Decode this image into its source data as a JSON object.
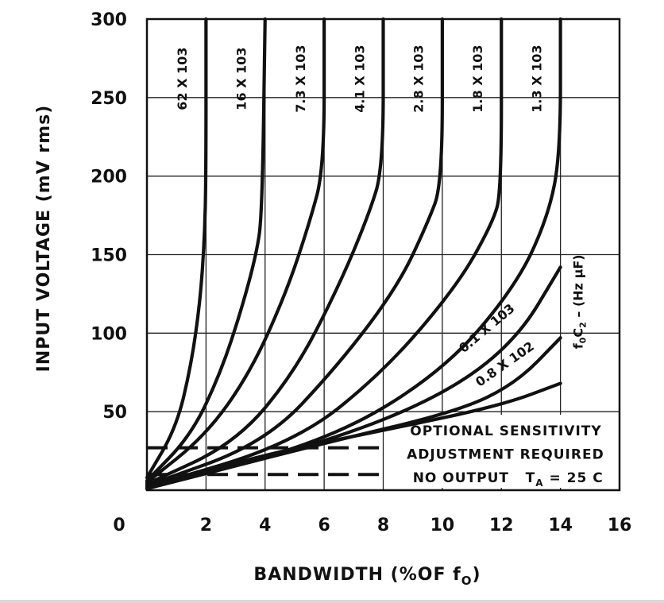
{
  "chart_data": {
    "type": "line",
    "title": "",
    "xlabel": "BANDWIDTH (%OF fO)",
    "xlabel_parts": {
      "main": "BANDWIDTH (%OF f",
      "sub": "O",
      "close": ")"
    },
    "ylabel": "INPUT VOLTAGE (mV rms)",
    "xlim": [
      0,
      16
    ],
    "ylim": [
      0,
      300
    ],
    "x_ticks": [
      "0",
      "2",
      "4",
      "6",
      "8",
      "10",
      "12",
      "14",
      "16"
    ],
    "y_ticks": [
      "50",
      "100",
      "150",
      "200",
      "250",
      "300"
    ],
    "grid": true,
    "family_label": "f0C2 – (Hz µF)",
    "family_label_parts": {
      "f": "f",
      "sub0": "0",
      "C": "C",
      "sub2": "2",
      "rest": " – (Hz µF)"
    },
    "series": [
      {
        "name": "62 X 103",
        "points": [
          [
            0,
            8
          ],
          [
            1.0,
            40
          ],
          [
            1.5,
            80
          ],
          [
            1.8,
            120
          ],
          [
            1.95,
            160
          ],
          [
            2,
            200
          ],
          [
            2,
            300
          ]
        ]
      },
      {
        "name": "16 X 103",
        "points": [
          [
            0,
            6
          ],
          [
            1.5,
            35
          ],
          [
            2.5,
            75
          ],
          [
            3.2,
            115
          ],
          [
            3.7,
            150
          ],
          [
            3.9,
            175
          ],
          [
            4,
            300
          ]
        ]
      },
      {
        "name": "7.3 X 103",
        "points": [
          [
            0,
            5
          ],
          [
            2.0,
            35
          ],
          [
            3.5,
            75
          ],
          [
            4.7,
            125
          ],
          [
            5.5,
            170
          ],
          [
            6,
            205
          ],
          [
            6,
            300
          ]
        ]
      },
      {
        "name": "4.1 X 103",
        "points": [
          [
            0,
            4
          ],
          [
            3.0,
            30
          ],
          [
            5.0,
            75
          ],
          [
            6.5,
            130
          ],
          [
            7.5,
            175
          ],
          [
            8,
            205
          ],
          [
            8,
            300
          ]
        ]
      },
      {
        "name": "2.8 X 103",
        "points": [
          [
            0,
            3
          ],
          [
            4.0,
            30
          ],
          [
            6.5,
            80
          ],
          [
            8.5,
            130
          ],
          [
            9.5,
            170
          ],
          [
            10,
            195
          ],
          [
            10,
            300
          ]
        ]
      },
      {
        "name": "1.8 X 103",
        "points": [
          [
            0,
            2
          ],
          [
            5.0,
            30
          ],
          [
            8.0,
            75
          ],
          [
            10.5,
            130
          ],
          [
            11.7,
            170
          ],
          [
            12,
            190
          ],
          [
            12,
            300
          ]
        ]
      },
      {
        "name": "1.3 X 103",
        "points": [
          [
            0,
            2
          ],
          [
            6.0,
            30
          ],
          [
            10.0,
            75
          ],
          [
            12.5,
            130
          ],
          [
            13.6,
            175
          ],
          [
            14,
            215
          ],
          [
            14,
            300
          ]
        ]
      },
      {
        "name": "0.1 X 103",
        "points": [
          [
            0,
            1
          ],
          [
            6.0,
            30
          ],
          [
            10.0,
            60
          ],
          [
            12.5,
            95
          ],
          [
            14,
            142
          ]
        ]
      },
      {
        "name": "0.8 X 102",
        "points": [
          [
            0,
            1
          ],
          [
            6.0,
            30
          ],
          [
            10.5,
            50
          ],
          [
            12.5,
            68
          ],
          [
            14,
            97
          ]
        ]
      },
      {
        "name": "",
        "points": [
          [
            0,
            1
          ],
          [
            4.0,
            23
          ],
          [
            8.0,
            38
          ],
          [
            12.0,
            54
          ],
          [
            14,
            68
          ]
        ]
      }
    ],
    "labels": {
      "top": [
        "62 X 103",
        "16 X 103",
        "7.3 X 103",
        "4.1 X 103",
        "2.8 X 103",
        "1.8 X 103",
        "1.3 X 103"
      ],
      "lower": [
        "0.1 X 103",
        "0.8 X 102"
      ]
    },
    "dashed_lines": [
      {
        "name": "optional-sensitivity",
        "y": 27
      },
      {
        "name": "no-output",
        "y": 10
      }
    ],
    "notes": {
      "line1": "OPTIONAL SENSITIVITY",
      "line2": "ADJUSTMENT REQUIRED",
      "line3": "NO OUTPUT",
      "ta": "TA = 25 C",
      "ta_parts": {
        "T": "T",
        "sub": "A",
        "rest": " = 25 C"
      }
    }
  }
}
